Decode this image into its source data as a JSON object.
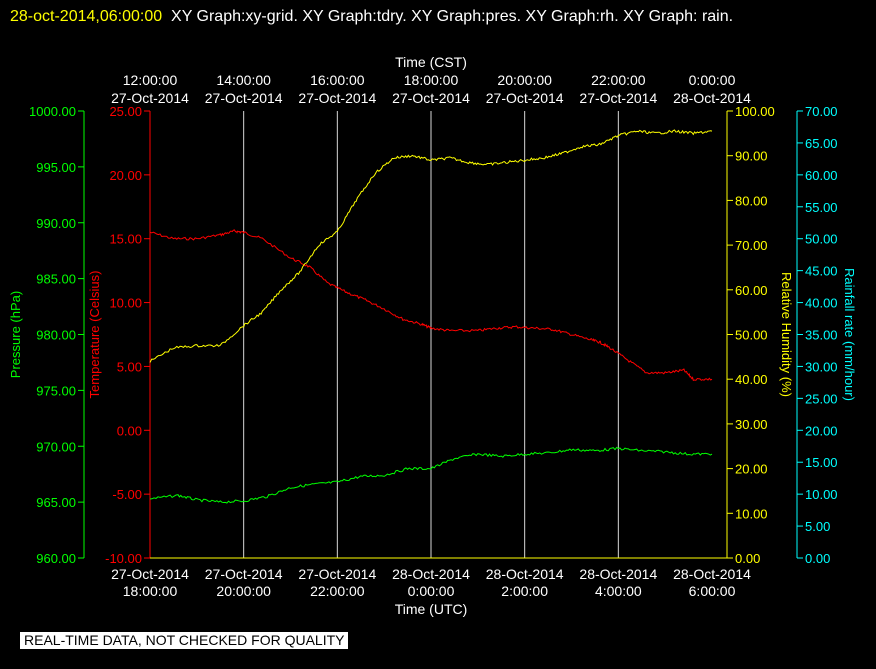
{
  "header": {
    "timestamp": "28-oct-2014,06:00:00",
    "graphs": "XY Graph:xy-grid.  XY Graph:tdry.  XY Graph:pres.  XY Graph:rh.  XY Graph: rain."
  },
  "disclaimer": "REAL-TIME DATA, NOT CHECKED FOR QUALITY",
  "colors": {
    "background": "#000000",
    "grid": "#ffffff",
    "temperature": "#ff0000",
    "pressure": "#00ff00",
    "humidity": "#ffff00",
    "rainfall": "#00ffff"
  },
  "chart_data": {
    "type": "line",
    "x_top_title": "Time (CST)",
    "x_bottom_title": "Time (UTC)",
    "x_ticks_top": [
      {
        "time": "12:00:00",
        "date": "27-Oct-2014"
      },
      {
        "time": "14:00:00",
        "date": "27-Oct-2014"
      },
      {
        "time": "16:00:00",
        "date": "27-Oct-2014"
      },
      {
        "time": "18:00:00",
        "date": "27-Oct-2014"
      },
      {
        "time": "20:00:00",
        "date": "27-Oct-2014"
      },
      {
        "time": "22:00:00",
        "date": "27-Oct-2014"
      },
      {
        "time": "0:00:00",
        "date": "28-Oct-2014"
      }
    ],
    "x_ticks_bottom": [
      {
        "date": "27-Oct-2014",
        "time": "18:00:00"
      },
      {
        "date": "27-Oct-2014",
        "time": "20:00:00"
      },
      {
        "date": "27-Oct-2014",
        "time": "22:00:00"
      },
      {
        "date": "28-Oct-2014",
        "time": "0:00:00"
      },
      {
        "date": "28-Oct-2014",
        "time": "2:00:00"
      },
      {
        "date": "28-Oct-2014",
        "time": "4:00:00"
      },
      {
        "date": "28-Oct-2014",
        "time": "6:00:00"
      }
    ],
    "axes": {
      "pressure": {
        "label": "Pressure (hPa)",
        "range": [
          960,
          1000
        ],
        "ticks": [
          "960.00",
          "965.00",
          "970.00",
          "975.00",
          "980.00",
          "985.00",
          "990.00",
          "995.00",
          "1000.00"
        ]
      },
      "temperature": {
        "label": "Temperature (Celsius)",
        "range": [
          -10,
          25
        ],
        "ticks": [
          "-10.00",
          "-5.00",
          "0.00",
          "5.00",
          "10.00",
          "15.00",
          "20.00",
          "25.00"
        ]
      },
      "humidity": {
        "label": "Relative Humidity (%)",
        "range": [
          0,
          100
        ],
        "ticks": [
          "0.00",
          "10.00",
          "20.00",
          "30.00",
          "40.00",
          "50.00",
          "60.00",
          "70.00",
          "80.00",
          "90.00",
          "100.00"
        ]
      },
      "rainfall": {
        "label": "Rainfall rate (mm/hour)",
        "range": [
          0,
          70
        ],
        "ticks": [
          "0.00",
          "5.00",
          "10.00",
          "15.00",
          "20.00",
          "25.00",
          "30.00",
          "35.00",
          "40.00",
          "45.00",
          "50.00",
          "55.00",
          "60.00",
          "65.00",
          "70.00"
        ]
      }
    },
    "series": [
      {
        "key": "temperature",
        "x": [
          0,
          0.5,
          1,
          1.5,
          1.8,
          2.0,
          2.4,
          3.0,
          3.4,
          3.8,
          4.2,
          4.6,
          5.0,
          5.4,
          5.8,
          6.0,
          6.4,
          7.0,
          7.4,
          7.8,
          8.2,
          8.6,
          9.0,
          9.4,
          9.6,
          9.8,
          10.2,
          10.6,
          11.0,
          11.4,
          11.6,
          12.0
        ],
        "y": [
          15.5,
          15.0,
          15.0,
          15.3,
          15.6,
          15.5,
          15.0,
          13.5,
          12.8,
          11.5,
          10.8,
          10.2,
          9.5,
          8.7,
          8.3,
          8.0,
          7.8,
          7.8,
          8.0,
          8.1,
          8.0,
          7.9,
          7.5,
          7.1,
          6.9,
          6.5,
          5.5,
          4.5,
          4.5,
          4.7,
          4.0,
          4.0
        ]
      },
      {
        "key": "pressure",
        "x": [
          0,
          0.6,
          1.0,
          1.5,
          2.0,
          2.5,
          3.0,
          3.5,
          4.0,
          4.5,
          5.0,
          5.5,
          6.0,
          6.5,
          7.0,
          7.5,
          8.0,
          8.5,
          9.0,
          9.5,
          10.0,
          10.5,
          11.0,
          11.5,
          12.0
        ],
        "y": [
          965.3,
          965.6,
          965.2,
          965.0,
          965.1,
          965.5,
          966.3,
          966.6,
          966.8,
          967.3,
          967.4,
          968.0,
          968.0,
          968.9,
          969.3,
          969.1,
          969.3,
          969.4,
          969.7,
          969.6,
          969.8,
          969.6,
          969.5,
          969.3,
          969.3
        ]
      },
      {
        "key": "humidity",
        "x": [
          0,
          0.5,
          1.0,
          1.5,
          2.0,
          2.4,
          2.8,
          3.2,
          3.6,
          4.0,
          4.4,
          4.8,
          5.2,
          5.6,
          6.0,
          6.4,
          6.8,
          7.2,
          7.6,
          8.0,
          8.4,
          8.8,
          9.2,
          9.6,
          10.0,
          10.4,
          10.8,
          11.2,
          11.6,
          12.0
        ],
        "y": [
          44.0,
          47.0,
          47.5,
          47.5,
          52.0,
          55.0,
          60.0,
          64.0,
          70.0,
          73.0,
          80.0,
          86.0,
          89.5,
          90.0,
          89.0,
          89.5,
          88.5,
          88.0,
          88.5,
          89.0,
          89.5,
          90.5,
          92.0,
          92.5,
          94.5,
          95.5,
          95.0,
          95.5,
          95.0,
          95.5
        ]
      },
      {
        "key": "rainfall",
        "x": [],
        "y": []
      }
    ]
  }
}
